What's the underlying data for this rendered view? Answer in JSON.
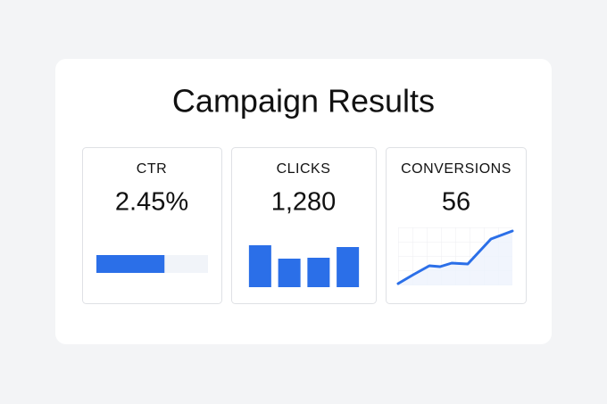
{
  "header": {
    "title": "Campaign Results"
  },
  "cards": [
    {
      "label": "CTR",
      "value": "2.45%",
      "chart": {
        "type": "progress",
        "values": [
          61
        ],
        "xlim": [
          0,
          100
        ],
        "color": "#2b6fe8",
        "track_color": "#f1f4f9"
      }
    },
    {
      "label": "CLICKS",
      "value": "1,280",
      "chart": {
        "type": "bar",
        "values": [
          47,
          32,
          33,
          45
        ],
        "ylim": [
          0,
          50
        ],
        "color": "#2b6fe8"
      }
    },
    {
      "label": "CONVERSIONS",
      "value": "56",
      "chart": {
        "type": "line",
        "x": [
          0,
          17,
          35,
          47,
          60,
          78,
          104,
          128
        ],
        "values": [
          2,
          12,
          22,
          21,
          25,
          24,
          52,
          61
        ],
        "xlim": [
          0,
          128
        ],
        "ylim": [
          0,
          65
        ],
        "color": "#2b6fe8",
        "area_color": "#eef3fc"
      }
    }
  ]
}
